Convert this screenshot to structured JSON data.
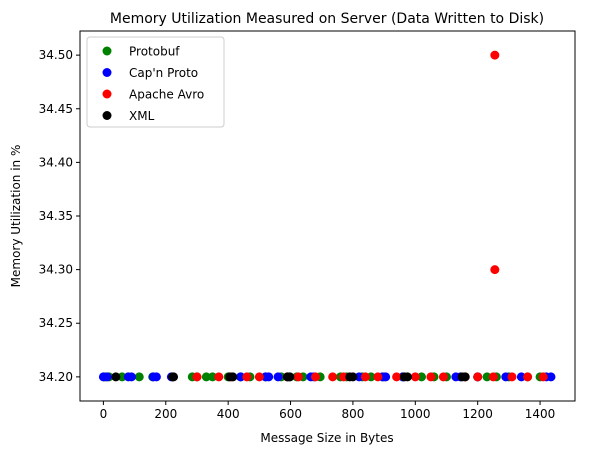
{
  "chart_data": {
    "type": "scatter",
    "title": "Memory Utilization Measured on Server (Data Written to Disk)",
    "xlabel": "Message Size in Bytes",
    "ylabel": "Memory Utilization in %",
    "xlim": [
      -75,
      1512
    ],
    "ylim": [
      34.1775,
      34.5225
    ],
    "xticks": [
      0,
      200,
      400,
      600,
      800,
      1000,
      1200,
      1400
    ],
    "xtick_labels": [
      "0",
      "200",
      "400",
      "600",
      "800",
      "1000",
      "1200",
      "1400"
    ],
    "yticks": [
      34.2,
      34.25,
      34.3,
      34.35,
      34.4,
      34.45,
      34.5
    ],
    "ytick_labels": [
      "34.20",
      "34.25",
      "34.30",
      "34.35",
      "34.40",
      "34.45",
      "34.50"
    ],
    "grid": false,
    "legend_position": "top-left",
    "series": [
      {
        "name": "Protobuf",
        "color": "#008000",
        "x": [
          2,
          8,
          18,
          60,
          115,
          158,
          285,
          300,
          330,
          350,
          400,
          440,
          470,
          520,
          570,
          595,
          620,
          640,
          695,
          760,
          780,
          830,
          858,
          900,
          960,
          1020,
          1060,
          1100,
          1200,
          1230,
          1260,
          1300,
          1360,
          1400
        ],
        "y": [
          34.2,
          34.2,
          34.2,
          34.2,
          34.2,
          34.2,
          34.2,
          34.2,
          34.2,
          34.2,
          34.2,
          34.2,
          34.2,
          34.2,
          34.2,
          34.2,
          34.2,
          34.2,
          34.2,
          34.2,
          34.2,
          34.2,
          34.2,
          34.2,
          34.2,
          34.2,
          34.2,
          34.2,
          34.2,
          34.2,
          34.2,
          34.2,
          34.2,
          34.2
        ]
      },
      {
        "name": "Cap'n Proto",
        "color": "#0000ff",
        "x": [
          0,
          12,
          80,
          90,
          160,
          170,
          218,
          440,
          520,
          530,
          560,
          665,
          675,
          820,
          895,
          905,
          960,
          1130,
          1145,
          1200,
          1290,
          1340,
          1420,
          1435
        ],
        "y": [
          34.2,
          34.2,
          34.2,
          34.2,
          34.2,
          34.2,
          34.2,
          34.2,
          34.2,
          34.2,
          34.2,
          34.2,
          34.2,
          34.2,
          34.2,
          34.2,
          34.2,
          34.2,
          34.2,
          34.2,
          34.2,
          34.2,
          34.2,
          34.2
        ]
      },
      {
        "name": "Apache Avro",
        "color": "#ff0000",
        "x": [
          300,
          370,
          410,
          460,
          500,
          590,
          625,
          680,
          735,
          770,
          840,
          880,
          940,
          1000,
          1050,
          1090,
          1160,
          1200,
          1250,
          1310,
          1360,
          1410,
          1255,
          1255
        ],
        "y": [
          34.2,
          34.2,
          34.2,
          34.2,
          34.2,
          34.2,
          34.2,
          34.2,
          34.2,
          34.2,
          34.2,
          34.2,
          34.2,
          34.2,
          34.2,
          34.2,
          34.2,
          34.2,
          34.2,
          34.2,
          34.2,
          34.2,
          34.3,
          34.5
        ]
      },
      {
        "name": "XML",
        "color": "#000000",
        "x": [
          40,
          222,
          225,
          405,
          415,
          590,
          598,
          790,
          800,
          965,
          975,
          1150,
          1160
        ],
        "y": [
          34.2,
          34.2,
          34.2,
          34.2,
          34.2,
          34.2,
          34.2,
          34.2,
          34.2,
          34.2,
          34.2,
          34.2,
          34.2
        ]
      }
    ]
  }
}
